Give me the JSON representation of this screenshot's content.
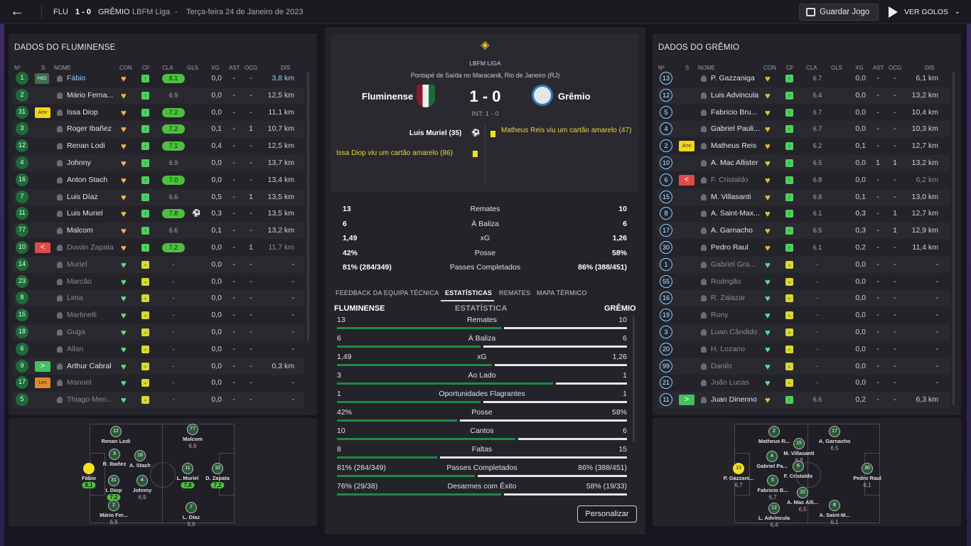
{
  "topbar": {
    "home": "FLU",
    "score": "1 - 0",
    "away": "GRÊMIO",
    "competition": "LBFM Liga",
    "sep": "-",
    "date": "Terça-feira 24 de Janeiro de 2023",
    "save": "Guardar Jogo",
    "goals": "VER GOLOS"
  },
  "left": {
    "title": "DADOS DO FLUMINENSE",
    "headers": [
      "Nº",
      "S",
      "NOME",
      "CON",
      "CF",
      "CLA",
      "GLS",
      "XG",
      "AST",
      "OCG",
      "DIS"
    ],
    "rows": [
      {
        "n": "1",
        "s": "HdJ",
        "name": "Fábio",
        "rat": "8.1",
        "gls": "",
        "xg": "0,0",
        "ast": "-",
        "ocg": "-",
        "dis": "3,8 km"
      },
      {
        "n": "2",
        "s": "",
        "name": "Mário Ferna...",
        "rat": "6.9",
        "gls": "",
        "xg": "0,0",
        "ast": "-",
        "ocg": "-",
        "dis": "12,5 km"
      },
      {
        "n": "31",
        "s": "Amr",
        "name": "Issa Diop",
        "rat": "7.2",
        "gls": "",
        "xg": "0,0",
        "ast": "-",
        "ocg": "-",
        "dis": "11,1 km"
      },
      {
        "n": "3",
        "s": "",
        "name": "Roger Ibañez",
        "rat": "7.2",
        "gls": "",
        "xg": "0,1",
        "ast": "-",
        "ocg": "1",
        "dis": "10,7 km"
      },
      {
        "n": "12",
        "s": "",
        "name": "Renan Lodi",
        "rat": "7.1",
        "gls": "",
        "xg": "0,4",
        "ast": "-",
        "ocg": "-",
        "dis": "12,5 km"
      },
      {
        "n": "4",
        "s": "",
        "name": "Johnny",
        "rat": "6.9",
        "gls": "",
        "xg": "0,0",
        "ast": "-",
        "ocg": "-",
        "dis": "13,7 km"
      },
      {
        "n": "16",
        "s": "",
        "name": "Anton Stach",
        "rat": "7.0",
        "gls": "",
        "xg": "0,0",
        "ast": "-",
        "ocg": "-",
        "dis": "13,4 km"
      },
      {
        "n": "7",
        "s": "",
        "name": "Luis Díaz",
        "rat": "6.6",
        "gls": "",
        "xg": "0,5",
        "ast": "-",
        "ocg": "1",
        "dis": "13,5 km"
      },
      {
        "n": "11",
        "s": "",
        "name": "Luis Muriel",
        "rat": "7.8",
        "gls": "⚽",
        "xg": "0,3",
        "ast": "-",
        "ocg": "-",
        "dis": "13,5 km"
      },
      {
        "n": "77",
        "s": "",
        "name": "Malcom",
        "rat": "6.6",
        "gls": "",
        "xg": "0,1",
        "ast": "-",
        "ocg": "-",
        "dis": "13,2 km"
      },
      {
        "n": "10",
        "s": "<",
        "name": "Duván Zapata",
        "rat": "7.2",
        "gls": "",
        "xg": "0,0",
        "ast": "-",
        "ocg": "1",
        "dis": "11,7 km"
      },
      {
        "n": "14",
        "s": "",
        "name": "Muriel",
        "rat": "-",
        "gls": "",
        "xg": "0,0",
        "ast": "-",
        "ocg": "-",
        "dis": "-"
      },
      {
        "n": "23",
        "s": "",
        "name": "Marcão",
        "rat": "-",
        "gls": "",
        "xg": "0,0",
        "ast": "-",
        "ocg": "-",
        "dis": "-"
      },
      {
        "n": "8",
        "s": "",
        "name": "Lima",
        "rat": "-",
        "gls": "",
        "xg": "0,0",
        "ast": "-",
        "ocg": "-",
        "dis": "-"
      },
      {
        "n": "15",
        "s": "",
        "name": "Martinelli",
        "rat": "-",
        "gls": "",
        "xg": "0,0",
        "ast": "-",
        "ocg": "-",
        "dis": "-"
      },
      {
        "n": "18",
        "s": "",
        "name": "Guga",
        "rat": "-",
        "gls": "",
        "xg": "0,0",
        "ast": "-",
        "ocg": "-",
        "dis": "-"
      },
      {
        "n": "6",
        "s": "",
        "name": "Allan",
        "rat": "-",
        "gls": "",
        "xg": "0,0",
        "ast": "-",
        "ocg": "-",
        "dis": "-"
      },
      {
        "n": "9",
        "s": ">",
        "name": "Arthur Cabral",
        "rat": "-",
        "gls": "",
        "xg": "0,0",
        "ast": "-",
        "ocg": "-",
        "dis": "0,3 km"
      },
      {
        "n": "17",
        "s": "Les",
        "name": "Manoel",
        "rat": "-",
        "gls": "",
        "xg": "0,0",
        "ast": "-",
        "ocg": "-",
        "dis": "-"
      },
      {
        "n": "5",
        "s": "",
        "name": "Thiago Men...",
        "rat": "-",
        "gls": "",
        "xg": "0,0",
        "ast": "-",
        "ocg": "-",
        "dis": "-"
      }
    ]
  },
  "right": {
    "title": "DADOS DO GRÊMIO",
    "headers": [
      "Nº",
      "S",
      "NOME",
      "CON",
      "CF",
      "CLA",
      "GLS",
      "XG",
      "AST",
      "OCG",
      "DIS"
    ],
    "rows": [
      {
        "n": "13",
        "s": "",
        "name": "P. Gazzaniga",
        "rat": "6.7",
        "xg": "0,0",
        "ast": "-",
        "ocg": "-",
        "dis": "6,1 km"
      },
      {
        "n": "12",
        "s": "",
        "name": "Luis Advincula",
        "rat": "6.4",
        "xg": "0,0",
        "ast": "-",
        "ocg": "-",
        "dis": "13,2 km"
      },
      {
        "n": "5",
        "s": "",
        "name": "Fabricio Bru...",
        "rat": "6.7",
        "xg": "0,0",
        "ast": "-",
        "ocg": "-",
        "dis": "10,4 km"
      },
      {
        "n": "4",
        "s": "",
        "name": "Gabriel Pauli...",
        "rat": "6.7",
        "xg": "0,0",
        "ast": "-",
        "ocg": "-",
        "dis": "10,3 km"
      },
      {
        "n": "2",
        "s": "Amr",
        "name": "Matheus Reis",
        "rat": "6.2",
        "xg": "0,1",
        "ast": "-",
        "ocg": "-",
        "dis": "12,7 km"
      },
      {
        "n": "10",
        "s": "",
        "name": "A. Mac Allister",
        "rat": "6.5",
        "xg": "0,0",
        "ast": "1",
        "ocg": "1",
        "dis": "13,2 km"
      },
      {
        "n": "6",
        "s": "<",
        "name": "F. Cristaldo",
        "rat": "6.8",
        "xg": "0,0",
        "ast": "-",
        "ocg": "-",
        "dis": "6,2 km"
      },
      {
        "n": "15",
        "s": "",
        "name": "M. Villasanti",
        "rat": "6.8",
        "xg": "0,1",
        "ast": "-",
        "ocg": "-",
        "dis": "13,0 km"
      },
      {
        "n": "8",
        "s": "",
        "name": "A. Saint-Max...",
        "rat": "6.1",
        "xg": "0,3",
        "ast": "-",
        "ocg": "1",
        "dis": "12,7 km"
      },
      {
        "n": "17",
        "s": "",
        "name": "A. Garnacho",
        "rat": "6.5",
        "xg": "0,3",
        "ast": "-",
        "ocg": "1",
        "dis": "12,9 km"
      },
      {
        "n": "30",
        "s": "",
        "name": "Pedro Raul",
        "rat": "6.1",
        "xg": "0,2",
        "ast": "-",
        "ocg": "-",
        "dis": "11,4 km"
      },
      {
        "n": "1",
        "s": "",
        "name": "Gabriel Gra...",
        "rat": "-",
        "xg": "0,0",
        "ast": "-",
        "ocg": "-",
        "dis": "-"
      },
      {
        "n": "55",
        "s": "",
        "name": "Rodrigão",
        "rat": "-",
        "xg": "0,0",
        "ast": "-",
        "ocg": "-",
        "dis": "-"
      },
      {
        "n": "16",
        "s": "",
        "name": "R. Zalazar",
        "rat": "-",
        "xg": "0,0",
        "ast": "-",
        "ocg": "-",
        "dis": "-"
      },
      {
        "n": "19",
        "s": "",
        "name": "Rony",
        "rat": "-",
        "xg": "0,0",
        "ast": "-",
        "ocg": "-",
        "dis": "-"
      },
      {
        "n": "3",
        "s": "",
        "name": "Luan Cândido",
        "rat": "-",
        "xg": "0,0",
        "ast": "-",
        "ocg": "-",
        "dis": "-"
      },
      {
        "n": "20",
        "s": "",
        "name": "H. Lozano",
        "rat": "-",
        "xg": "0,0",
        "ast": "-",
        "ocg": "-",
        "dis": "-"
      },
      {
        "n": "99",
        "s": "",
        "name": "Danilo",
        "rat": "-",
        "xg": "0,0",
        "ast": "-",
        "ocg": "-",
        "dis": "-"
      },
      {
        "n": "21",
        "s": "",
        "name": "João Lucas",
        "rat": "-",
        "xg": "0,0",
        "ast": "-",
        "ocg": "-",
        "dis": "-"
      },
      {
        "n": "11",
        "s": ">",
        "name": "Juan Dinenno",
        "rat": "6.6",
        "xg": "0,2",
        "ast": "-",
        "ocg": "-",
        "dis": "6,3 km"
      }
    ]
  },
  "match": {
    "league": "LBFM LIGA",
    "venue": "Pontapé de Saída no Maracanã, Rio de Janeiro (RJ)",
    "home": "Fluminense",
    "away": "Grêmio",
    "score": "1 - 0",
    "ht": "INT: 1 - 0",
    "goal": "Luis Muriel (35)",
    "ev1": "Matheus Reis viu um cartão amarelo (47)",
    "ev2": "Issa Diop viu um cartão amarelo (86)"
  },
  "summary": [
    {
      "l": "13",
      "label": "Remates",
      "r": "10"
    },
    {
      "l": "6",
      "label": "À Baliza",
      "r": "6"
    },
    {
      "l": "1,49",
      "label": "xG",
      "r": "1,26"
    },
    {
      "l": "42%",
      "label": "Posse",
      "r": "58%"
    },
    {
      "l": "81% (284/349)",
      "label": "Passes Completados",
      "r": "86% (388/451)"
    }
  ],
  "tabs": [
    "FEEDBACK DA EQUIPA TÉCNICA",
    "ESTATÍSTICAS",
    "REMATES",
    "MAPA TÉRMICO"
  ],
  "detail": {
    "home": "FLUMINENSE",
    "label": "ESTATÍSTICA",
    "away": "GRÊMIO",
    "rows": [
      {
        "l": "13",
        "label": "Remates",
        "r": "10",
        "lf": 0.57
      },
      {
        "l": "6",
        "label": "À Baliza",
        "r": "6",
        "lf": 0.5
      },
      {
        "l": "1,49",
        "label": "xG",
        "r": "1,26",
        "lf": 0.54
      },
      {
        "l": "3",
        "label": "Ao Lado",
        "r": "1",
        "lf": 0.75
      },
      {
        "l": "1",
        "label": "Oportunidades Flagrantes",
        "r": "1",
        "lf": 0.5
      },
      {
        "l": "42%",
        "label": "Posse",
        "r": "58%",
        "lf": 0.42
      },
      {
        "l": "10",
        "label": "Cantos",
        "r": "6",
        "lf": 0.62
      },
      {
        "l": "8",
        "label": "Faltas",
        "r": "15",
        "lf": 0.35
      },
      {
        "l": "81% (284/349)",
        "label": "Passes Completados",
        "r": "86% (388/451)",
        "lf": 0.48
      },
      {
        "l": "76% (29/38)",
        "label": "Desarmes com Êxito",
        "r": "58% (19/33)",
        "lf": 0.57
      }
    ]
  },
  "customize": "Personalizar",
  "pitchL": [
    {
      "n": "12",
      "name": "Renan Lodi",
      "rat": ""
    },
    {
      "n": "77",
      "name": "Malcom",
      "rat": "6,6"
    },
    {
      "n": "3",
      "name": "R. Ibañez",
      "rat": ""
    },
    {
      "n": "16",
      "name": "A. Stach",
      "rat": ""
    },
    {
      "n": "",
      "name": "Fábio",
      "rat": "8,1"
    },
    {
      "n": "31",
      "name": "I. Diop",
      "rat": "7,2"
    },
    {
      "n": "4",
      "name": "Johnny",
      "rat": "6,9"
    },
    {
      "n": "11",
      "name": "L. Muriel",
      "rat": "7,8"
    },
    {
      "n": "10",
      "name": "D. Zapata",
      "rat": "7,2"
    },
    {
      "n": "2",
      "name": "Mário Fer...",
      "rat": "6,9"
    },
    {
      "n": "7",
      "name": "L. Díaz",
      "rat": "6,6"
    }
  ],
  "pitchR": [
    {
      "n": "2",
      "name": "Matheus R...",
      "rat": ""
    },
    {
      "n": "17",
      "name": "A. Garnacho",
      "rat": "6,5"
    },
    {
      "n": "15",
      "name": "M. Villasanti",
      "rat": "6,8"
    },
    {
      "n": "4",
      "name": "Gabriel Pa...",
      "rat": ""
    },
    {
      "n": "13",
      "name": "P. Gazzani...",
      "rat": "6,7"
    },
    {
      "n": "6",
      "name": "F. Cristaldo",
      "rat": ""
    },
    {
      "n": "30",
      "name": "Pedro Raul",
      "rat": "6,1"
    },
    {
      "n": "5",
      "name": "Fabricio B...",
      "rat": "6,7"
    },
    {
      "n": "10",
      "name": "A. Mac Alli...",
      "rat": "6,5"
    },
    {
      "n": "12",
      "name": "L. Advincula",
      "rat": "6,4"
    },
    {
      "n": "8",
      "name": "A. Saint-M...",
      "rat": "6,1"
    }
  ]
}
